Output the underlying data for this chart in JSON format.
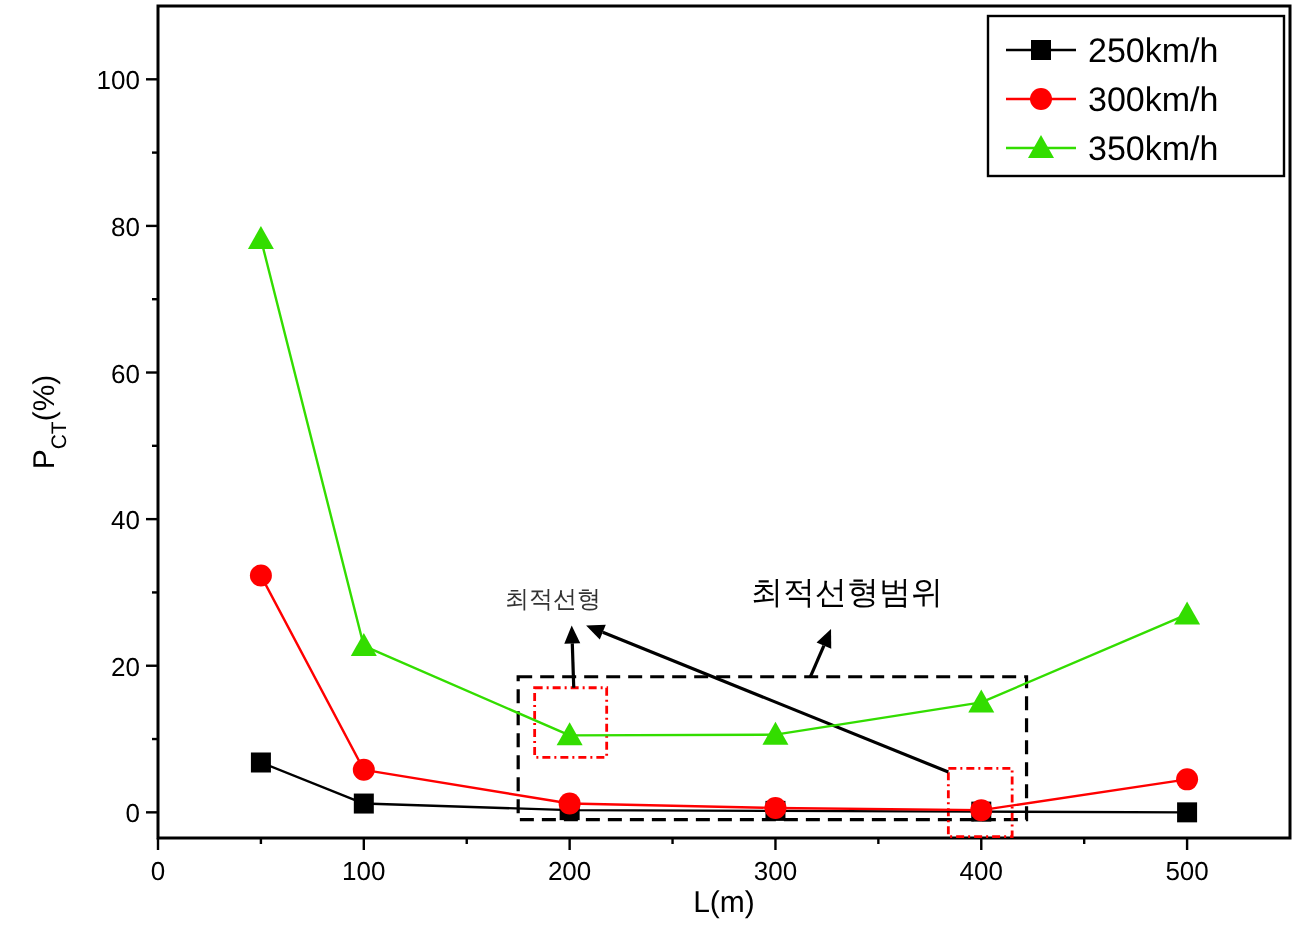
{
  "chart_data": {
    "type": "line",
    "xlabel": "L(m)",
    "ylabel": "P$_{CT}$(%)",
    "x": [
      50,
      100,
      200,
      300,
      400,
      500
    ],
    "series": [
      {
        "name": "250km/h",
        "color": "#000000",
        "marker": "square",
        "values": [
          6.8,
          1.2,
          0.3,
          0.2,
          0.1,
          0
        ]
      },
      {
        "name": "300km/h",
        "color": "#ff0000",
        "marker": "circle",
        "values": [
          32.3,
          5.8,
          1.2,
          0.6,
          0.3,
          4.5
        ]
      },
      {
        "name": "350km/h",
        "color": "#33dd00",
        "marker": "triangle",
        "values": [
          78.2,
          22.7,
          10.5,
          10.6,
          15,
          27
        ]
      }
    ],
    "xlim": [
      0,
      550
    ],
    "ylim": [
      -3.5,
      110
    ],
    "xticks": [
      0,
      {
        "value": 50,
        "label": null
      },
      100,
      {
        "value": 150,
        "label": null
      },
      200,
      {
        "value": 250,
        "label": null
      },
      300,
      {
        "value": 350,
        "label": null
      },
      400,
      {
        "value": 450,
        "label": null
      },
      500
    ],
    "yticks": [
      0,
      {
        "value": 10,
        "label": null
      },
      20,
      {
        "value": 30,
        "label": null
      },
      40,
      {
        "value": 50,
        "label": null
      },
      60,
      {
        "value": 70,
        "label": null
      },
      80,
      {
        "value": 90,
        "label": null
      },
      100
    ],
    "annotations": [
      "최적선형",
      "최적선형범위"
    ],
    "legend": "top right",
    "grid": false
  }
}
